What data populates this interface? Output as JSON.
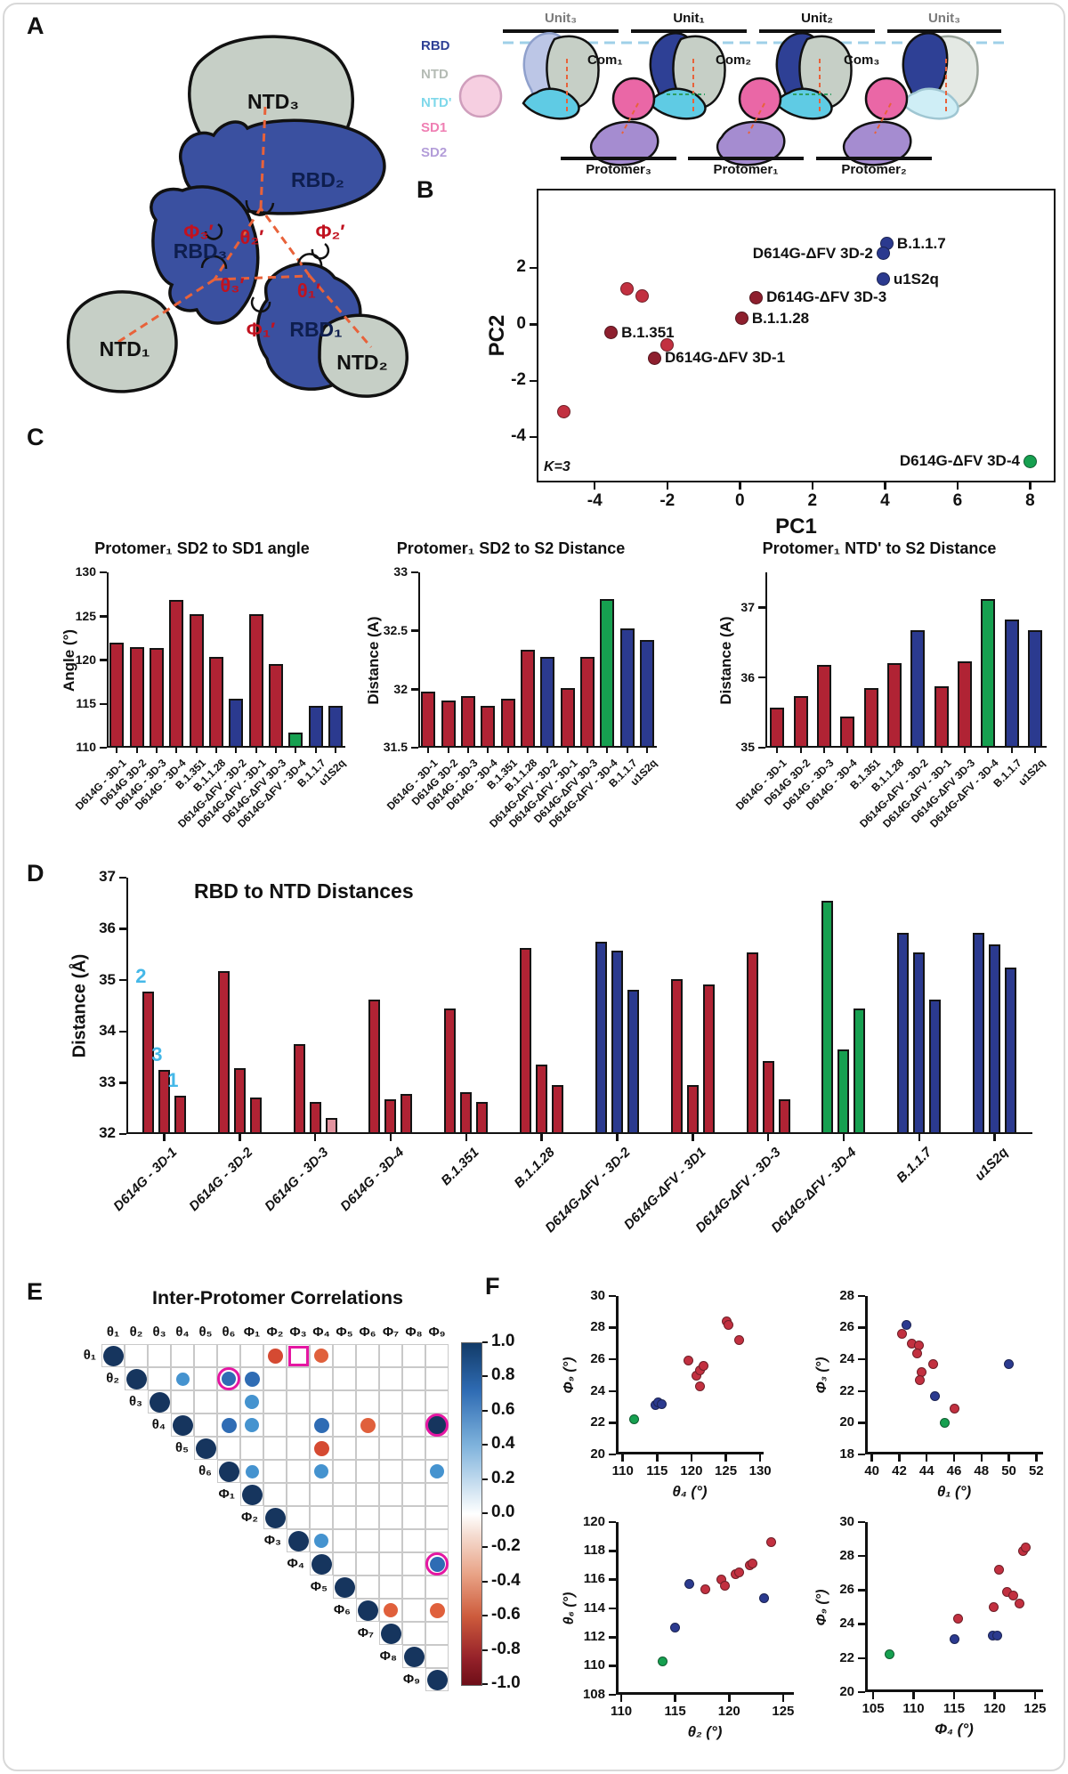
{
  "colors": {
    "red": "#B02334",
    "blue": "#2B3A8F",
    "green": "#16A050",
    "pink": "#E2939F",
    "darkred": "#8E1F2E",
    "point_red": "#C23040",
    "annotation_cyan": "#45B8E8",
    "highlight_magenta": "#E517A2",
    "rbd_blue": "#3A50A0",
    "ntd_gray": "#C6CFC6",
    "ntdp_cyan": "#5FCBE4",
    "sd1_pink": "#EA67A6",
    "sd2_purple": "#A58CD0",
    "dash_orange": "#E8623A"
  },
  "panels": {
    "a": {
      "label": "A",
      "trimer_domains": [
        "NTD₃",
        "RBD₂",
        "RBD₃",
        "RBD₁",
        "NTD₁",
        "NTD₂"
      ],
      "trimer_angles": [
        "Φ₃′",
        "θ₂′",
        "Φ₂′",
        "θ₃′",
        "θ₁′",
        "Φ₁′"
      ],
      "legend": [
        {
          "label": "RBD",
          "color": "#2E4095"
        },
        {
          "label": "NTD",
          "color": "#B5BCB5"
        },
        {
          "label": "NTD'",
          "color": "#7FD8EA"
        },
        {
          "label": "SD1",
          "color": "#EF7FB3"
        },
        {
          "label": "SD2",
          "color": "#B39DD9"
        }
      ],
      "units": [
        {
          "label": "Unit₃",
          "color": "#7A7A7A"
        },
        {
          "label": "Unit₁",
          "color": "#111111"
        },
        {
          "label": "Unit₂",
          "color": "#111111"
        },
        {
          "label": "Unit₃",
          "color": "#7A7A7A"
        }
      ],
      "coms": [
        "Com₁",
        "Com₂",
        "Com₃"
      ],
      "protomers": [
        "Protomer₃",
        "Protomer₁",
        "Protomer₂"
      ]
    },
    "b": {
      "label": "B"
    },
    "c": {
      "label": "C"
    },
    "d": {
      "label": "D"
    },
    "e": {
      "label": "E"
    },
    "f": {
      "label": "F"
    }
  },
  "chart_data": [
    {
      "id": "chart-b",
      "type": "scatter",
      "title": "",
      "xlabel": "PC1",
      "ylabel": "PC2",
      "xlim": [
        -5.6,
        8.7
      ],
      "ylim": [
        -5.6,
        4.8
      ],
      "xticks": [
        -4,
        -2,
        0,
        2,
        4,
        6,
        8
      ],
      "yticks": [
        2,
        0,
        -2,
        -4
      ],
      "box": true,
      "point_radius": 7.5,
      "annotation": "K=3",
      "points": [
        {
          "x": -3.1,
          "y": 1.25,
          "color": "point_red"
        },
        {
          "x": -2.7,
          "y": 1.0,
          "color": "point_red"
        },
        {
          "x": -3.55,
          "y": -0.3,
          "color": "darkred",
          "label": "B.1.351",
          "side": "right"
        },
        {
          "x": -2.0,
          "y": -0.72,
          "color": "point_red"
        },
        {
          "x": -2.35,
          "y": -1.2,
          "color": "darkred",
          "label": "D614G-ΔFV 3D-1",
          "side": "right"
        },
        {
          "x": -4.85,
          "y": -3.1,
          "color": "point_red"
        },
        {
          "x": 0.45,
          "y": 0.95,
          "color": "darkred",
          "label": "D614G-ΔFV 3D-3",
          "side": "right"
        },
        {
          "x": 0.05,
          "y": 0.2,
          "color": "darkred",
          "label": "B.1.1.28",
          "side": "right"
        },
        {
          "x": 4.05,
          "y": 2.85,
          "color": "blue",
          "label": "B.1.1.7",
          "side": "right"
        },
        {
          "x": 3.95,
          "y": 2.5,
          "color": "blue",
          "label": "D614G-ΔFV 3D-2",
          "side": "left"
        },
        {
          "x": 3.95,
          "y": 1.6,
          "color": "blue",
          "label": "u1S2q",
          "side": "right"
        },
        {
          "x": 8.0,
          "y": -4.85,
          "color": "green",
          "label": "D614G-ΔFV 3D-4",
          "side": "left"
        }
      ]
    },
    {
      "id": "chart-c1",
      "type": "bar",
      "title": "Protomer₁ SD2 to SD1 angle",
      "ylabel": "Angle (°)",
      "ylim": [
        110,
        130
      ],
      "yticks": [
        110,
        115,
        120,
        125,
        130
      ],
      "categories": [
        "D614G - 3D-1",
        "D614G 3D-2",
        "D614G - 3D-3",
        "D614G - 3D-4",
        "B.1.351",
        "B.1.1.28",
        "D614G-ΔFV - 3D-2",
        "D614G-ΔFV - 3D-1",
        "D614G-ΔFV 3D-3",
        "D614G-ΔFV - 3D-4",
        "B.1.1.7",
        "u1S2q"
      ],
      "values": [
        122.0,
        121.5,
        121.4,
        126.9,
        125.2,
        120.4,
        115.6,
        125.2,
        119.5,
        111.7,
        114.8,
        114.8
      ],
      "bar_colors": [
        "red",
        "red",
        "red",
        "red",
        "red",
        "red",
        "blue",
        "red",
        "red",
        "green",
        "blue",
        "blue"
      ]
    },
    {
      "id": "chart-c2",
      "type": "bar",
      "title": "Protomer₁ SD2 to S2 Distance",
      "ylabel": "Distance (A)",
      "ylim": [
        31.5,
        33.0
      ],
      "yticks": [
        31.5,
        32.0,
        32.5,
        33.0
      ],
      "categories": [
        "D614G - 3D-1",
        "D614G 3D-2",
        "D614G - 3D-3",
        "D614G - 3D-4",
        "B.1.351",
        "B.1.1.28",
        "D614G-ΔFV - 3D-2",
        "D614G-ΔFV - 3D-1",
        "D614G-ΔFV 3D-3",
        "D614G-ΔFV - 3D-4",
        "B.1.1.7",
        "u1S2q"
      ],
      "values": [
        31.98,
        31.9,
        31.94,
        31.86,
        31.92,
        32.34,
        32.28,
        32.01,
        32.28,
        32.77,
        32.52,
        32.42
      ],
      "bar_colors": [
        "red",
        "red",
        "red",
        "red",
        "red",
        "red",
        "blue",
        "red",
        "red",
        "green",
        "blue",
        "blue"
      ]
    },
    {
      "id": "chart-c3",
      "type": "bar",
      "title": "Protomer₁ NTD' to S2 Distance",
      "ylabel": "Distance (A)",
      "ylim": [
        35,
        37.5
      ],
      "yticks": [
        35,
        36,
        37
      ],
      "categories": [
        "D614G - 3D-1",
        "D614G 3D-2",
        "D614G - 3D-3",
        "D614G - 3D-4",
        "B.1.351",
        "B.1.1.28",
        "D614G-ΔFV - 3D-2",
        "D614G-ΔFV - 3D-1",
        "D614G-ΔFV 3D-3",
        "D614G-ΔFV - 3D-4",
        "B.1.1.7",
        "u1S2q"
      ],
      "values": [
        35.57,
        35.73,
        36.18,
        35.45,
        35.85,
        36.2,
        36.68,
        35.88,
        36.23,
        37.12,
        36.83,
        36.67
      ],
      "bar_colors": [
        "red",
        "red",
        "red",
        "red",
        "red",
        "red",
        "blue",
        "red",
        "red",
        "green",
        "blue",
        "blue"
      ]
    },
    {
      "id": "chart-d",
      "type": "grouped_bar",
      "title": "RBD to NTD Distances",
      "ylabel": "Distance (Å)",
      "ylim": [
        32,
        37
      ],
      "yticks": [
        32,
        33,
        34,
        35,
        36,
        37
      ],
      "categories": [
        "D614G - 3D-1",
        "D614G - 3D-2",
        "D614G - 3D-3",
        "D614G - 3D-4",
        "B.1.351",
        "B.1.1.28",
        "D614G-ΔFV - 3D-2",
        "D614G-ΔFV - 3D1",
        "D614G-ΔFV - 3D-3",
        "D614G-ΔFV - 3D-4",
        "B.1.1.7",
        "u1S2q"
      ],
      "group_colors": [
        "red",
        "red",
        "red",
        "red",
        "red",
        "red",
        "blue",
        "red",
        "red",
        "green",
        "blue",
        "blue"
      ],
      "values": [
        [
          34.78,
          33.25,
          32.75
        ],
        [
          35.18,
          33.28,
          32.72
        ],
        [
          33.75,
          32.62,
          32.32
        ],
        [
          34.62,
          32.68,
          32.78
        ],
        [
          34.45,
          32.82,
          32.62
        ],
        [
          35.62,
          33.35,
          32.95
        ],
        [
          35.75,
          35.58,
          34.82
        ],
        [
          35.02,
          32.95,
          34.92
        ],
        [
          35.55,
          33.42,
          32.68
        ],
        [
          36.55,
          33.65,
          34.45
        ],
        [
          35.92,
          35.55,
          34.62
        ],
        [
          35.92,
          35.7,
          35.25
        ]
      ],
      "special_bars": [
        {
          "group": 2,
          "bar": 2,
          "color": "pink"
        }
      ],
      "bar_annotations": [
        {
          "group": 0,
          "bar": 0,
          "text": "2"
        },
        {
          "group": 0,
          "bar": 1,
          "text": "3"
        },
        {
          "group": 0,
          "bar": 2,
          "text": "1"
        }
      ]
    },
    {
      "id": "chart-e",
      "type": "corr_matrix",
      "title": "Inter-Protomer Correlations",
      "labels": [
        "θ₁",
        "θ₂",
        "θ₃",
        "θ₄",
        "θ₅",
        "θ₆",
        "Φ₁",
        "Φ₂",
        "Φ₃",
        "Φ₄",
        "Φ₅",
        "Φ₆",
        "Φ₇",
        "Φ₈",
        "Φ₉"
      ],
      "diagonal_value": 1.0,
      "cells": [
        {
          "row": 0,
          "col": 7,
          "v": -0.62
        },
        {
          "row": 0,
          "col": 9,
          "v": -0.55
        },
        {
          "row": 1,
          "col": 3,
          "v": 0.42
        },
        {
          "row": 1,
          "col": 5,
          "v": 0.55
        },
        {
          "row": 1,
          "col": 6,
          "v": 0.6
        },
        {
          "row": 2,
          "col": 6,
          "v": 0.5
        },
        {
          "row": 3,
          "col": 5,
          "v": 0.62
        },
        {
          "row": 3,
          "col": 6,
          "v": 0.5
        },
        {
          "row": 3,
          "col": 9,
          "v": 0.58
        },
        {
          "row": 3,
          "col": 11,
          "v": -0.58
        },
        {
          "row": 3,
          "col": 14,
          "v": 0.95
        },
        {
          "row": 4,
          "col": 9,
          "v": -0.62
        },
        {
          "row": 5,
          "col": 6,
          "v": 0.48
        },
        {
          "row": 5,
          "col": 9,
          "v": 0.52
        },
        {
          "row": 5,
          "col": 14,
          "v": 0.5
        },
        {
          "row": 8,
          "col": 9,
          "v": 0.5
        },
        {
          "row": 9,
          "col": 14,
          "v": 0.6
        },
        {
          "row": 11,
          "col": 12,
          "v": -0.52
        },
        {
          "row": 11,
          "col": 14,
          "v": -0.58
        }
      ],
      "highlights": [
        {
          "row": 0,
          "col": 8,
          "type": "square"
        },
        {
          "row": 1,
          "col": 5,
          "type": "ring"
        },
        {
          "row": 3,
          "col": 14,
          "type": "ring"
        },
        {
          "row": 9,
          "col": 14,
          "type": "ring"
        }
      ],
      "colorbar_ticks": [
        "1.0",
        "0.8",
        "0.6",
        "0.4",
        "0.2",
        "0.0",
        "-0.2",
        "-0.4",
        "-0.6",
        "-0.8",
        "-1.0"
      ]
    },
    {
      "id": "chart-f1",
      "type": "scatter",
      "xlabel": "θ₄ (°)",
      "ylabel": "Φ₉ (°)",
      "xlim": [
        109,
        130.5
      ],
      "ylim": [
        20,
        30
      ],
      "xticks": [
        110,
        115,
        120,
        125,
        130
      ],
      "yticks": [
        20,
        22,
        24,
        26,
        28,
        30
      ],
      "box": false,
      "point_radius": 5.5,
      "italic_axes": true,
      "points": [
        {
          "x": 111.7,
          "y": 22.2,
          "color": "green"
        },
        {
          "x": 114.7,
          "y": 23.1,
          "color": "blue"
        },
        {
          "x": 115.2,
          "y": 23.3,
          "color": "blue"
        },
        {
          "x": 115.7,
          "y": 23.2,
          "color": "blue"
        },
        {
          "x": 119.5,
          "y": 25.9,
          "color": "point_red"
        },
        {
          "x": 120.7,
          "y": 25.0,
          "color": "point_red"
        },
        {
          "x": 121.2,
          "y": 25.3,
          "color": "point_red"
        },
        {
          "x": 121.2,
          "y": 24.3,
          "color": "point_red"
        },
        {
          "x": 121.8,
          "y": 25.6,
          "color": "point_red"
        },
        {
          "x": 125.1,
          "y": 28.4,
          "color": "point_red"
        },
        {
          "x": 125.4,
          "y": 28.2,
          "color": "point_red"
        },
        {
          "x": 126.9,
          "y": 27.2,
          "color": "point_red"
        }
      ]
    },
    {
      "id": "chart-f2",
      "type": "scatter",
      "xlabel": "θ₁ (°)",
      "ylabel": "Φ₃ (°)",
      "xlim": [
        39.5,
        52.5
      ],
      "ylim": [
        18,
        28
      ],
      "xticks": [
        40,
        42,
        44,
        46,
        48,
        50,
        52
      ],
      "yticks": [
        18,
        20,
        22,
        24,
        26,
        28
      ],
      "box": false,
      "point_radius": 5.5,
      "italic_axes": true,
      "points": [
        {
          "x": 42.5,
          "y": 26.2,
          "color": "blue"
        },
        {
          "x": 42.2,
          "y": 25.6,
          "color": "point_red"
        },
        {
          "x": 42.9,
          "y": 25.0,
          "color": "point_red"
        },
        {
          "x": 43.4,
          "y": 24.9,
          "color": "point_red"
        },
        {
          "x": 43.3,
          "y": 24.4,
          "color": "point_red"
        },
        {
          "x": 44.5,
          "y": 23.7,
          "color": "point_red"
        },
        {
          "x": 43.6,
          "y": 23.2,
          "color": "point_red"
        },
        {
          "x": 43.5,
          "y": 22.7,
          "color": "point_red"
        },
        {
          "x": 44.6,
          "y": 21.7,
          "color": "blue"
        },
        {
          "x": 46.0,
          "y": 20.9,
          "color": "point_red"
        },
        {
          "x": 45.3,
          "y": 20.0,
          "color": "green"
        },
        {
          "x": 50.0,
          "y": 23.7,
          "color": "blue"
        }
      ]
    },
    {
      "id": "chart-f3",
      "type": "scatter",
      "xlabel": "θ₂ (°)",
      "ylabel": "θ₆ (°)",
      "xlim": [
        109.5,
        126
      ],
      "ylim": [
        108,
        120
      ],
      "xticks": [
        110,
        115,
        120,
        125
      ],
      "yticks": [
        108,
        110,
        112,
        114,
        116,
        118,
        120
      ],
      "box": false,
      "point_radius": 5.5,
      "italic_axes": true,
      "points": [
        {
          "x": 113.8,
          "y": 110.3,
          "color": "green"
        },
        {
          "x": 115.0,
          "y": 112.7,
          "color": "blue"
        },
        {
          "x": 116.3,
          "y": 115.7,
          "color": "blue"
        },
        {
          "x": 117.8,
          "y": 115.3,
          "color": "point_red"
        },
        {
          "x": 119.3,
          "y": 116.0,
          "color": "point_red"
        },
        {
          "x": 119.6,
          "y": 115.6,
          "color": "point_red"
        },
        {
          "x": 120.6,
          "y": 116.4,
          "color": "point_red"
        },
        {
          "x": 120.9,
          "y": 116.5,
          "color": "point_red"
        },
        {
          "x": 121.9,
          "y": 117.0,
          "color": "point_red"
        },
        {
          "x": 122.2,
          "y": 117.1,
          "color": "point_red"
        },
        {
          "x": 123.9,
          "y": 118.6,
          "color": "point_red"
        },
        {
          "x": 123.2,
          "y": 114.7,
          "color": "blue"
        }
      ]
    },
    {
      "id": "chart-f4",
      "type": "scatter",
      "xlabel": "Φ₄ (°)",
      "ylabel": "Φ₉ (°)",
      "xlim": [
        104,
        126
      ],
      "ylim": [
        20,
        30
      ],
      "xticks": [
        105,
        110,
        115,
        120,
        125
      ],
      "yticks": [
        20,
        22,
        24,
        26,
        28,
        30
      ],
      "box": false,
      "point_radius": 5.5,
      "italic_axes": true,
      "points": [
        {
          "x": 107.0,
          "y": 22.2,
          "color": "green"
        },
        {
          "x": 115.0,
          "y": 23.1,
          "color": "blue"
        },
        {
          "x": 115.5,
          "y": 24.3,
          "color": "point_red"
        },
        {
          "x": 119.8,
          "y": 23.3,
          "color": "blue"
        },
        {
          "x": 120.3,
          "y": 23.3,
          "color": "blue"
        },
        {
          "x": 119.9,
          "y": 25.0,
          "color": "point_red"
        },
        {
          "x": 120.5,
          "y": 27.2,
          "color": "point_red"
        },
        {
          "x": 121.5,
          "y": 25.9,
          "color": "point_red"
        },
        {
          "x": 122.3,
          "y": 25.7,
          "color": "point_red"
        },
        {
          "x": 123.1,
          "y": 25.2,
          "color": "point_red"
        },
        {
          "x": 123.5,
          "y": 28.3,
          "color": "point_red"
        },
        {
          "x": 123.8,
          "y": 28.5,
          "color": "point_red"
        }
      ]
    }
  ]
}
